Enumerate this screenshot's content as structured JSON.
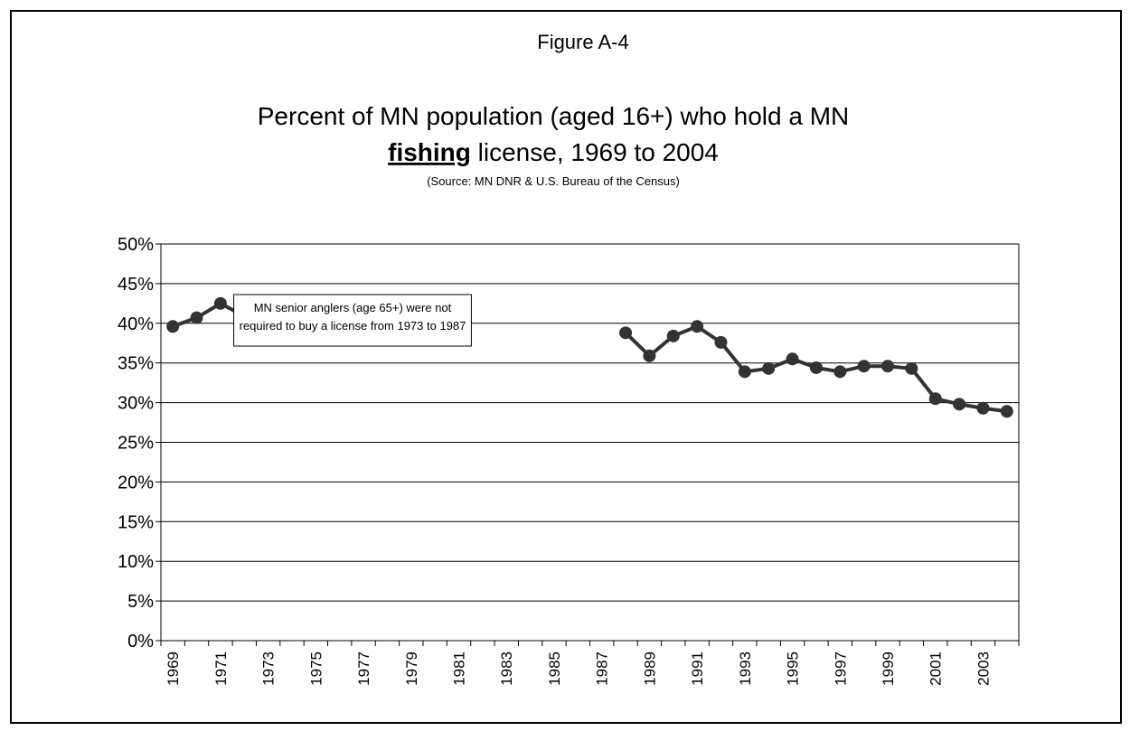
{
  "chart_data": {
    "type": "line",
    "figure_label": "Figure A-4",
    "title": "Percent of MN population (aged 16+) who hold a MN",
    "title_line2": {
      "bold": "fishing",
      "rest": " license, 1969 to 2004"
    },
    "subtitle": "(Source: MN DNR & U.S. Bureau of the Census)",
    "annotation": [
      "MN senior anglers (age 65+) were not",
      "required to buy a license from 1973 to 1987"
    ],
    "categories": [
      "1969",
      null,
      "1971",
      null,
      "1973",
      null,
      "1975",
      null,
      "1977",
      null,
      "1979",
      null,
      "1981",
      null,
      "1983",
      null,
      "1985",
      null,
      "1987",
      null,
      "1989",
      null,
      "1991",
      null,
      "1993",
      null,
      "1995",
      null,
      "1997",
      null,
      "1999",
      null,
      "2001",
      null,
      "2003",
      null
    ],
    "series": [
      {
        "color": "#333333",
        "values": [
          39.6,
          40.7,
          42.5,
          40.9,
          null,
          null,
          null,
          null,
          null,
          null,
          null,
          null,
          null,
          null,
          null,
          null,
          null,
          null,
          null,
          38.8,
          35.9,
          38.4,
          39.6,
          37.6,
          33.9,
          34.3,
          35.5,
          34.4,
          33.9,
          34.6,
          34.6,
          34.3,
          30.5,
          29.8,
          29.3,
          28.9
        ]
      }
    ],
    "ylim": [
      0,
      50
    ],
    "yticks": [
      {
        "value": 0,
        "label": "0%"
      },
      {
        "value": 5,
        "label": "5%"
      },
      {
        "value": 10,
        "label": "10%"
      },
      {
        "value": 15,
        "label": "15%"
      },
      {
        "value": 20,
        "label": "20%"
      },
      {
        "value": 25,
        "label": "25%"
      },
      {
        "value": 30,
        "label": "30%"
      },
      {
        "value": 35,
        "label": "35%"
      },
      {
        "value": 40,
        "label": "40%"
      },
      {
        "value": 45,
        "label": "45%"
      },
      {
        "value": 50,
        "label": "50%"
      }
    ],
    "grid": true
  }
}
